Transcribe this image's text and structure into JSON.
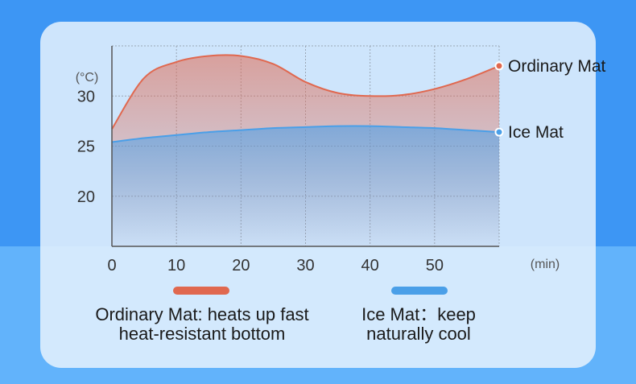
{
  "chart_data": {
    "type": "area",
    "x": [
      0,
      5,
      10,
      15,
      20,
      25,
      30,
      35,
      40,
      45,
      50,
      55,
      60
    ],
    "series": [
      {
        "name": "Ordinary Mat",
        "color": "#e0684f",
        "values": [
          26.7,
          31.8,
          33.4,
          34.0,
          34.0,
          33.2,
          31.4,
          30.3,
          30.0,
          30.1,
          30.7,
          31.7,
          33.0
        ]
      },
      {
        "name": "Ice Mat",
        "color": "#4a9fe8",
        "values": [
          25.4,
          25.8,
          26.1,
          26.4,
          26.6,
          26.8,
          26.9,
          27.0,
          27.0,
          26.9,
          26.8,
          26.6,
          26.4
        ]
      }
    ],
    "x_ticks": [
      "0",
      "10",
      "20",
      "30",
      "40",
      "50"
    ],
    "y_ticks": [
      "20",
      "25",
      "30"
    ],
    "xlabel": "(min)",
    "ylabel": "(°C)",
    "xlim": [
      0,
      60
    ],
    "ylim": [
      15,
      35
    ],
    "grid": true
  },
  "legend": {
    "ordinary": {
      "text": "Ordinary Mat: heats up fast\nheat-resistant bottom",
      "color": "#e0684f"
    },
    "ice": {
      "text": "Ice Mat：keep\nnaturally cool",
      "color": "#4a9fe8"
    }
  }
}
